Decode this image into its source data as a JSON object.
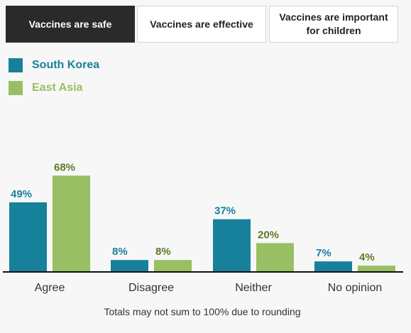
{
  "tabs": [
    {
      "label": "Vaccines are safe",
      "active": true
    },
    {
      "label": "Vaccines are effective",
      "active": false
    },
    {
      "label": "Vaccines are important for children",
      "active": false
    }
  ],
  "colors": {
    "south_korea": "#17819c",
    "east_asia": "#98bf63",
    "east_asia_label": "#5c7a26"
  },
  "chart_data": {
    "type": "bar",
    "categories": [
      "Agree",
      "Disagree",
      "Neither",
      "No opinion"
    ],
    "series": [
      {
        "name": "South Korea",
        "values": [
          49,
          8,
          37,
          7
        ],
        "labels": [
          "49%",
          "8%",
          "37%",
          "7%"
        ]
      },
      {
        "name": "East Asia",
        "values": [
          68,
          8,
          20,
          4
        ],
        "labels": [
          "68%",
          "8%",
          "20%",
          "4%"
        ]
      }
    ],
    "ylim": [
      0,
      100
    ],
    "grid": false,
    "legend": "top-left",
    "title": "",
    "xlabel": "",
    "ylabel": ""
  },
  "footnote": "Totals may not sum to 100% due to rounding"
}
